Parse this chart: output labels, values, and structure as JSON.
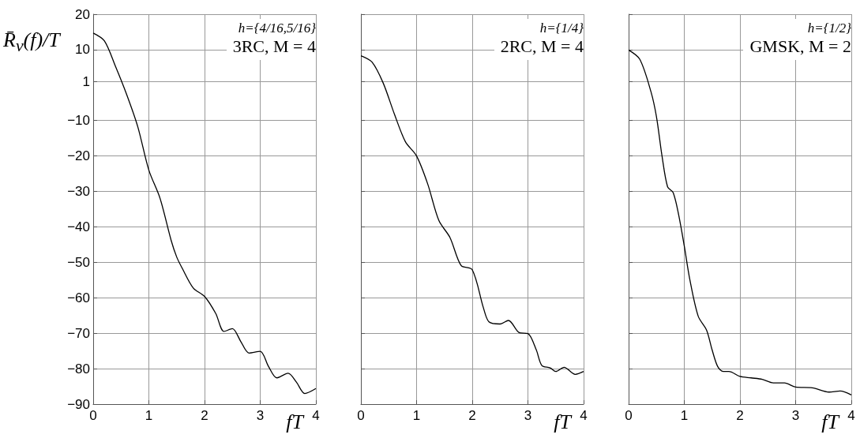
{
  "chart_data": [
    {
      "type": "line",
      "xlabel": "fT",
      "ylabel": "R̄$_{v}$(f)/T",
      "annotations": [
        "h={4/16,5/16}",
        "3RC, M = 4"
      ],
      "xlim": [
        0,
        4
      ],
      "xticks": [
        0,
        1,
        2,
        3,
        4
      ],
      "ylim": [
        -90,
        20
      ],
      "yticks": [
        -90,
        -80,
        -70,
        -60,
        -50,
        -40,
        -30,
        -20,
        -10,
        1,
        10,
        20
      ],
      "grid": true,
      "series": [
        {
          "color": "#000000",
          "x": [
            0,
            0.2,
            0.4,
            0.6,
            0.8,
            1.0,
            1.2,
            1.4,
            1.5,
            1.6,
            1.8,
            2.0,
            2.2,
            2.35,
            2.5,
            2.65,
            2.8,
            3.0,
            3.15,
            3.3,
            3.5,
            3.65,
            3.8,
            4.0
          ],
          "values": [
            14.7,
            12.5,
            5.3,
            -2.6,
            -11.7,
            -24,
            -31.9,
            -43.8,
            -48.5,
            -51.7,
            -57.3,
            -59.6,
            -64.4,
            -69.5,
            -68.7,
            -72.3,
            -75.6,
            -75.1,
            -79.4,
            -82.6,
            -81.3,
            -83.8,
            -87,
            -85.6
          ]
        }
      ]
    },
    {
      "type": "line",
      "xlabel": "fT",
      "annotations": [
        "h={1/4}",
        "2RC, M = 4"
      ],
      "xlim": [
        0,
        4
      ],
      "xticks": [
        0,
        1,
        2,
        3,
        4
      ],
      "ylim": [
        -90,
        20
      ],
      "yticks": [
        -90,
        -80,
        -70,
        -60,
        -50,
        -40,
        -30,
        -20,
        -10,
        1,
        10,
        20
      ],
      "grid": true,
      "tick_labels": "x",
      "series": [
        {
          "color": "#000000",
          "x": [
            0,
            0.2,
            0.4,
            0.6,
            0.8,
            1.0,
            1.2,
            1.4,
            1.6,
            1.8,
            2.0,
            2.2,
            2.3,
            2.5,
            2.65,
            2.85,
            3.0,
            3.15,
            3.25,
            3.4,
            3.5,
            3.65,
            3.85,
            4.0
          ],
          "values": [
            8.3,
            6.5,
            0.6,
            -8.1,
            -16,
            -20,
            -27.9,
            -38.2,
            -43,
            -50.9,
            -52.1,
            -62.8,
            -66.8,
            -67.4,
            -66.4,
            -69.9,
            -70.1,
            -74.7,
            -79.1,
            -79.8,
            -80.8,
            -79.6,
            -81.6,
            -80.8
          ]
        }
      ]
    },
    {
      "type": "line",
      "xlabel": "fT",
      "annotations": [
        "h={1/2}",
        "GMSK, M = 2"
      ],
      "xlim": [
        0,
        4
      ],
      "xticks": [
        0,
        1,
        2,
        3,
        4
      ],
      "ylim": [
        -90,
        20
      ],
      "yticks": [
        -90,
        -80,
        -70,
        -60,
        -50,
        -40,
        -30,
        -20,
        -10,
        1,
        10,
        20
      ],
      "grid": true,
      "tick_labels": "x",
      "series": [
        {
          "color": "#000000",
          "x": [
            0,
            0.2,
            0.4,
            0.5,
            0.6,
            0.7,
            0.8,
            0.9,
            1.0,
            1.1,
            1.25,
            1.4,
            1.5,
            1.6,
            1.7,
            1.8,
            2.0,
            2.2,
            2.4,
            2.6,
            2.8,
            3.0,
            3.3,
            3.6,
            3.8,
            4.0
          ],
          "values": [
            9.9,
            7.3,
            -1.8,
            -8.9,
            -20,
            -28.7,
            -30.3,
            -36.7,
            -45.4,
            -54.9,
            -65.2,
            -69.1,
            -74.7,
            -79.4,
            -80.8,
            -80.8,
            -82.2,
            -82.6,
            -83,
            -84,
            -84,
            -85.2,
            -85.4,
            -86.6,
            -86.3,
            -87.4
          ]
        }
      ]
    }
  ]
}
